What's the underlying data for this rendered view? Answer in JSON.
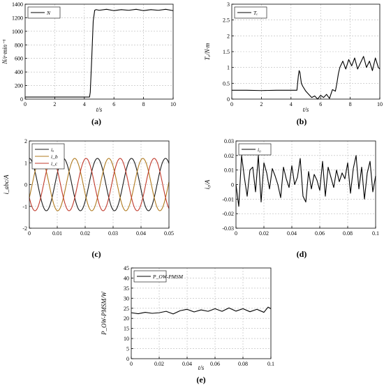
{
  "chart_data": [
    {
      "id": "a",
      "type": "line",
      "caption": "(a)",
      "xlabel": "t/s",
      "ylabel": "N/r·min⁻¹",
      "xlim": [
        0,
        10
      ],
      "ylim": [
        0,
        1400
      ],
      "xticks": [
        0,
        2,
        4,
        6,
        8,
        10
      ],
      "yticks": [
        0,
        200,
        400,
        600,
        800,
        1000,
        1200,
        1400
      ],
      "grid": true,
      "legend_position": "top-left",
      "series": [
        {
          "name": "N",
          "color": "#000000",
          "x": [
            0,
            4.35,
            4.4,
            4.5,
            4.6,
            4.7,
            4.8,
            5.0,
            5.5,
            6.0,
            6.5,
            7.0,
            7.5,
            8.0,
            8.5,
            9.0,
            9.5,
            10.0
          ],
          "y": [
            30,
            30,
            100,
            600,
            1150,
            1310,
            1320,
            1310,
            1325,
            1305,
            1320,
            1310,
            1325,
            1305,
            1320,
            1310,
            1325,
            1305
          ]
        }
      ]
    },
    {
      "id": "b",
      "type": "line",
      "caption": "(b)",
      "xlabel": "t/s",
      "ylabel": "Tₑ/N·m",
      "xlim": [
        0,
        10
      ],
      "ylim": [
        0,
        3
      ],
      "xticks": [
        0,
        2,
        4,
        6,
        8,
        10
      ],
      "yticks": [
        0,
        0.5,
        1,
        1.5,
        2,
        2.5,
        3
      ],
      "grid": true,
      "legend_position": "top-left",
      "series": [
        {
          "name": "Tₑ",
          "color": "#000000",
          "x": [
            0,
            1,
            2,
            3,
            4,
            4.4,
            4.5,
            4.55,
            4.6,
            4.7,
            4.8,
            5.0,
            5.2,
            5.4,
            5.6,
            5.8,
            6.0,
            6.2,
            6.4,
            6.6,
            6.8,
            7.0,
            7.1,
            7.2,
            7.3,
            7.5,
            7.7,
            7.9,
            8.1,
            8.3,
            8.5,
            8.7,
            8.9,
            9.1,
            9.3,
            9.5,
            9.7,
            9.9,
            10.0
          ],
          "y": [
            0.28,
            0.28,
            0.27,
            0.28,
            0.28,
            0.28,
            0.75,
            0.9,
            0.85,
            0.5,
            0.4,
            0.25,
            0.15,
            0.05,
            0.1,
            0.0,
            0.12,
            0.05,
            0.15,
            0.02,
            0.3,
            0.25,
            0.5,
            0.8,
            1.0,
            1.2,
            0.95,
            1.25,
            1.05,
            1.3,
            0.95,
            1.15,
            1.35,
            1.0,
            1.2,
            0.9,
            1.3,
            1.0,
            0.95
          ]
        }
      ]
    },
    {
      "id": "c",
      "type": "line",
      "caption": "(c)",
      "xlabel": "",
      "ylabel": "i_abc/A",
      "xlim": [
        0,
        0.05
      ],
      "ylim": [
        -2,
        2
      ],
      "xticks": [
        0,
        0.01,
        0.02,
        0.03,
        0.04,
        0.05
      ],
      "yticks": [
        -2,
        -1,
        0,
        1,
        2
      ],
      "grid": true,
      "legend_position": "top-left",
      "waveform": {
        "amplitude": 1.2,
        "frequency_hz": 82,
        "phase_deg": [
          90,
          -30,
          210
        ]
      },
      "series": [
        {
          "name": "iₐ",
          "color": "#1a1a1a"
        },
        {
          "name": "i_b",
          "color": "#b07a1e"
        },
        {
          "name": "i_c",
          "color": "#c0392b"
        }
      ]
    },
    {
      "id": "d",
      "type": "line",
      "caption": "(d)",
      "xlabel": "",
      "ylabel": "i₀/A",
      "xlim": [
        0,
        0.1
      ],
      "ylim": [
        -0.03,
        0.03
      ],
      "xticks": [
        0,
        0.02,
        0.04,
        0.06,
        0.08,
        0.1
      ],
      "yticks": [
        -0.03,
        -0.02,
        -0.01,
        0,
        0.01,
        0.02,
        0.03
      ],
      "grid": true,
      "legend_position": "top-left",
      "series": [
        {
          "name": "i₀",
          "color": "#000000",
          "x": [
            0,
            0.002,
            0.004,
            0.006,
            0.008,
            0.01,
            0.012,
            0.014,
            0.016,
            0.018,
            0.02,
            0.022,
            0.024,
            0.026,
            0.028,
            0.03,
            0.032,
            0.034,
            0.036,
            0.038,
            0.04,
            0.042,
            0.044,
            0.046,
            0.048,
            0.05,
            0.052,
            0.054,
            0.056,
            0.058,
            0.06,
            0.062,
            0.064,
            0.066,
            0.068,
            0.07,
            0.072,
            0.074,
            0.076,
            0.078,
            0.08,
            0.082,
            0.084,
            0.086,
            0.088,
            0.09,
            0.092,
            0.094,
            0.096,
            0.098,
            0.1
          ],
          "y": [
            0.0,
            -0.015,
            0.02,
            0.005,
            -0.008,
            0.01,
            0.012,
            -0.005,
            0.02,
            -0.012,
            0.015,
            0.008,
            -0.003,
            0.011,
            0.006,
            0.0,
            -0.009,
            0.012,
            0.004,
            -0.002,
            0.013,
            0.0,
            0.005,
            0.018,
            -0.008,
            -0.012,
            0.009,
            -0.003,
            0.007,
            0.003,
            -0.004,
            0.016,
            -0.008,
            0.012,
            0.005,
            -0.002,
            0.01,
            0.002,
            0.008,
            0.004,
            0.015,
            -0.006,
            0.011,
            0.02,
            -0.003,
            0.012,
            -0.01,
            0.008,
            0.016,
            -0.005,
            0.006
          ]
        }
      ]
    },
    {
      "id": "e",
      "type": "line",
      "caption": "(e)",
      "xlabel": "t/s",
      "ylabel": "P_OW-PMSM/W",
      "xlim": [
        0,
        0.1
      ],
      "ylim": [
        0,
        45
      ],
      "xticks": [
        0,
        0.02,
        0.04,
        0.06,
        0.08,
        0.1
      ],
      "yticks": [
        0,
        5,
        10,
        15,
        20,
        25,
        30,
        35,
        40,
        45
      ],
      "grid": true,
      "legend_position": "top-left",
      "series": [
        {
          "name": "P_OW-PMSM",
          "color": "#000000",
          "x": [
            0,
            0.005,
            0.01,
            0.015,
            0.02,
            0.025,
            0.03,
            0.035,
            0.04,
            0.045,
            0.05,
            0.055,
            0.06,
            0.065,
            0.07,
            0.075,
            0.08,
            0.085,
            0.09,
            0.095,
            0.098,
            0.1
          ],
          "y": [
            22.8,
            22.3,
            23.0,
            22.5,
            22.8,
            23.5,
            22.2,
            23.8,
            24.5,
            23.2,
            24.2,
            23.5,
            24.8,
            23.5,
            25.2,
            23.6,
            24.8,
            23.3,
            24.5,
            23.0,
            25.6,
            24.8
          ]
        }
      ]
    }
  ]
}
